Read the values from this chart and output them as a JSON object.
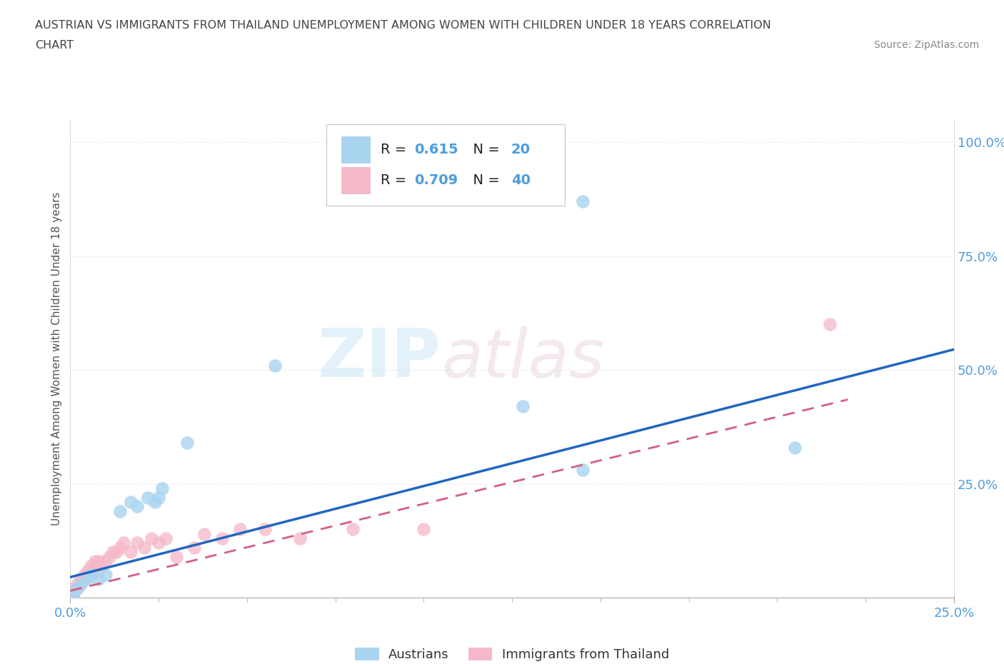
{
  "title_line1": "AUSTRIAN VS IMMIGRANTS FROM THAILAND UNEMPLOYMENT AMONG WOMEN WITH CHILDREN UNDER 18 YEARS CORRELATION",
  "title_line2": "CHART",
  "source": "Source: ZipAtlas.com",
  "ylabel": "Unemployment Among Women with Children Under 18 years",
  "xlim": [
    0.0,
    0.25
  ],
  "ylim": [
    0.0,
    1.05
  ],
  "austrians_color": "#a8d4f0",
  "thailand_color": "#f5b8c8",
  "austrians_line_color": "#2166c0",
  "thailand_line_color": "#d46080",
  "R_austrians": "0.615",
  "N_austrians": "20",
  "R_thailand": "0.709",
  "N_thailand": "40",
  "legend_label_1": "Austrians",
  "legend_label_2": "Immigrants from Thailand",
  "watermark_zip": "ZIP",
  "watermark_atlas": "atlas",
  "background_color": "#ffffff",
  "axis_tick_color": "#4d9de0",
  "grid_color": "#e0e0e0",
  "source_color": "#888888",
  "title_color": "#444444",
  "ylabel_color": "#555555",
  "legend_num_color": "#4d9de0"
}
